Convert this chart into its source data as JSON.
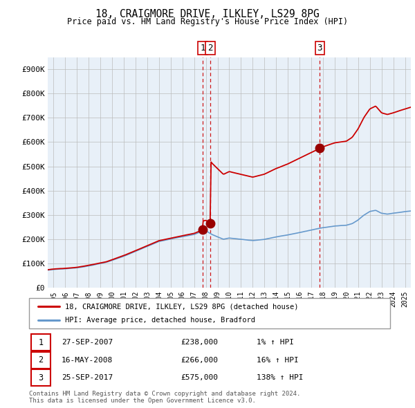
{
  "title": "18, CRAIGMORE DRIVE, ILKLEY, LS29 8PG",
  "subtitle": "Price paid vs. HM Land Registry's House Price Index (HPI)",
  "ylim": [
    0,
    950000
  ],
  "yticks": [
    0,
    100000,
    200000,
    300000,
    400000,
    500000,
    600000,
    700000,
    800000,
    900000
  ],
  "ytick_labels": [
    "£0",
    "£100K",
    "£200K",
    "£300K",
    "£400K",
    "£500K",
    "£600K",
    "£700K",
    "£800K",
    "£900K"
  ],
  "property_color": "#cc0000",
  "hpi_color": "#6699cc",
  "hpi_fill_color": "#ddeeff",
  "chart_bg_color": "#e8f0f8",
  "marker_color": "#990000",
  "vline_color": "#cc0000",
  "transaction_dates": [
    2007.74,
    2008.37,
    2017.73
  ],
  "transaction_prices": [
    238000,
    266000,
    575000
  ],
  "transaction_labels": [
    "1",
    "2",
    "3"
  ],
  "transaction_info": [
    {
      "num": "1",
      "date": "27-SEP-2007",
      "price": "£238,000",
      "change": "1% ↑ HPI"
    },
    {
      "num": "2",
      "date": "16-MAY-2008",
      "price": "£266,000",
      "change": "16% ↑ HPI"
    },
    {
      "num": "3",
      "date": "25-SEP-2017",
      "price": "£575,000",
      "change": "138% ↑ HPI"
    }
  ],
  "legend_property": "18, CRAIGMORE DRIVE, ILKLEY, LS29 8PG (detached house)",
  "legend_hpi": "HPI: Average price, detached house, Bradford",
  "footer": "Contains HM Land Registry data © Crown copyright and database right 2024.\nThis data is licensed under the Open Government Licence v3.0.",
  "xlim_start": 1994.5,
  "xlim_end": 2025.5,
  "xticks": [
    1995,
    1996,
    1997,
    1998,
    1999,
    2000,
    2001,
    2002,
    2003,
    2004,
    2005,
    2006,
    2007,
    2008,
    2009,
    2010,
    2011,
    2012,
    2013,
    2014,
    2015,
    2016,
    2017,
    2018,
    2019,
    2020,
    2021,
    2022,
    2023,
    2024,
    2025
  ],
  "xtick_labels": [
    "1995",
    "1996",
    "1997",
    "1998",
    "1999",
    "2000",
    "2001",
    "2002",
    "2003",
    "2004",
    "2005",
    "2006",
    "2007",
    "2008",
    "2009",
    "2010",
    "2011",
    "2012",
    "2013",
    "2014",
    "2015",
    "2016",
    "2017",
    "2018",
    "2019",
    "2020",
    "2021",
    "2022",
    "2023",
    "2024",
    "2025"
  ]
}
